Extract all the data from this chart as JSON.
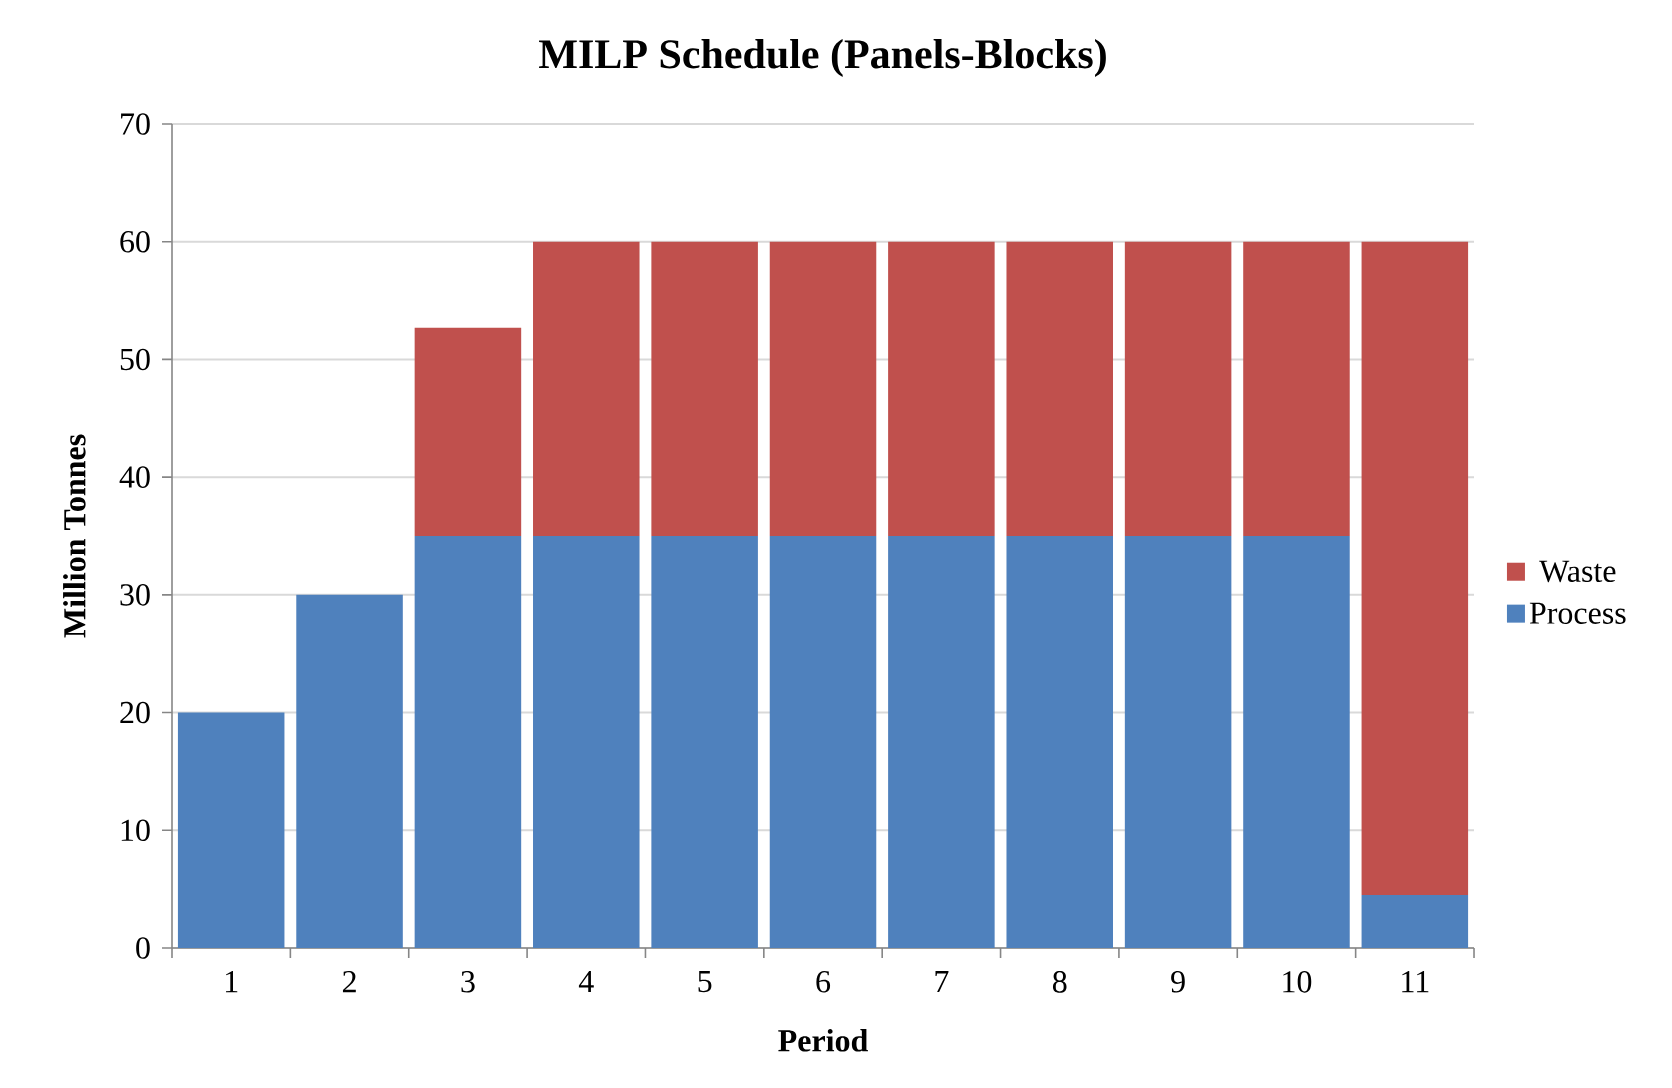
{
  "chart_data": {
    "type": "bar",
    "title": "MILP Schedule (Panels-Blocks)",
    "xlabel": "Period",
    "ylabel": "Million Tonnes",
    "categories": [
      "1",
      "2",
      "3",
      "4",
      "5",
      "6",
      "7",
      "8",
      "9",
      "10",
      "11"
    ],
    "stacked": true,
    "series": [
      {
        "name": "Process",
        "color": "#4f81bd",
        "values": [
          20,
          30,
          35,
          35,
          35,
          35,
          35,
          35,
          35,
          35,
          4.5
        ]
      },
      {
        "name": "Waste",
        "color": "#c0504d",
        "values": [
          null,
          null,
          17.7,
          25,
          25,
          25,
          25,
          25,
          25,
          25,
          55.5
        ]
      }
    ],
    "ylim": [
      0,
      70
    ],
    "yticks": [
      0,
      10,
      20,
      30,
      40,
      50,
      60,
      70
    ],
    "grid": "y",
    "legend": "right"
  }
}
